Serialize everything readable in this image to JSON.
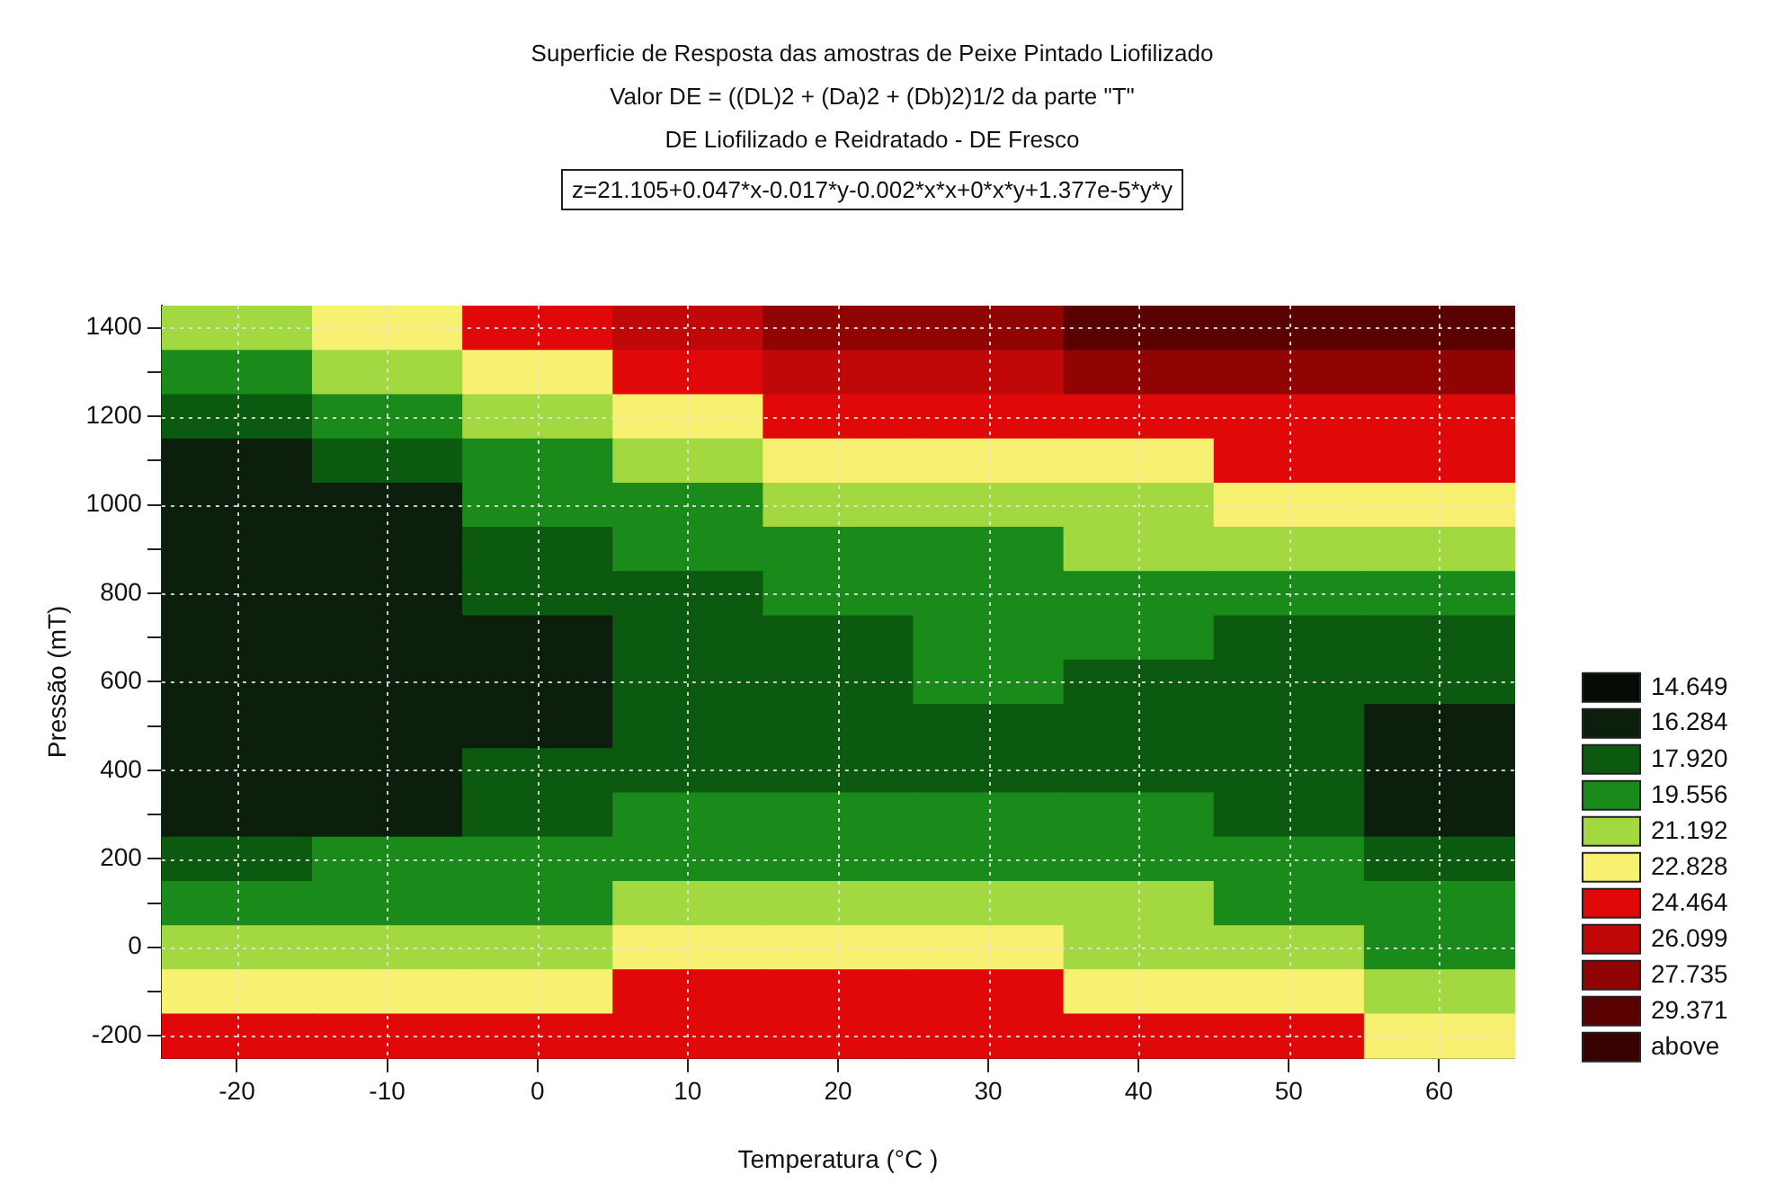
{
  "chart_data": {
    "type": "heatmap",
    "title": "Superficie de Resposta das amostras de Peixe Pintado Liofilizado",
    "subtitle": "Valor DE = ((DL)2 + (Da)2 + (Db)2)1/2  da parte \"T\"\nDE Liofilizado e Reidratado - DE Fresco",
    "annotations": [
      "z=21.105+0.047*x-0.017*y-0.002*x*x+0*x*y+1.377e-5*y*y"
    ],
    "xlabel": "Temperatura (°C )",
    "ylabel": "Pressão (mT)",
    "categories": [
      "-20",
      "-10",
      "0",
      "10",
      "20",
      "30",
      "40",
      "50",
      "60"
    ],
    "y_categories": [
      "1400",
      null,
      "1200",
      null,
      "1000",
      null,
      "800",
      null,
      "600",
      null,
      "400",
      null,
      "200",
      null,
      "0",
      null,
      "-200"
    ],
    "cells": [
      [
        20.37,
        22.01,
        23.65,
        25.28,
        26.92,
        26.92,
        28.55,
        28.55,
        28.55
      ],
      [
        18.74,
        20.37,
        22.01,
        23.65,
        25.28,
        25.28,
        26.92,
        26.92,
        26.92
      ],
      [
        17.1,
        18.74,
        20.37,
        22.01,
        23.65,
        23.65,
        23.65,
        23.65,
        23.65
      ],
      [
        15.47,
        17.1,
        18.74,
        20.37,
        22.01,
        22.01,
        22.01,
        23.65,
        23.65
      ],
      [
        15.47,
        15.47,
        18.74,
        18.74,
        20.37,
        20.37,
        20.37,
        22.01,
        22.01
      ],
      [
        15.47,
        15.47,
        17.1,
        18.74,
        18.74,
        18.74,
        20.37,
        20.37,
        20.37
      ],
      [
        15.47,
        15.47,
        17.1,
        17.1,
        18.74,
        18.74,
        18.74,
        18.74,
        18.74
      ],
      [
        15.47,
        15.47,
        15.47,
        17.1,
        17.1,
        18.74,
        18.74,
        17.1,
        17.1
      ],
      [
        15.47,
        15.47,
        15.47,
        17.1,
        17.1,
        18.74,
        17.1,
        17.1,
        17.1
      ],
      [
        15.47,
        15.47,
        15.47,
        17.1,
        17.1,
        17.1,
        17.1,
        17.1,
        15.47
      ],
      [
        15.47,
        15.47,
        17.1,
        17.1,
        17.1,
        17.1,
        17.1,
        17.1,
        15.47
      ],
      [
        15.47,
        15.47,
        17.1,
        18.74,
        18.74,
        18.74,
        18.74,
        17.1,
        15.47
      ],
      [
        17.1,
        18.74,
        18.74,
        18.74,
        18.74,
        18.74,
        18.74,
        18.74,
        17.1
      ],
      [
        18.74,
        18.74,
        18.74,
        20.37,
        20.37,
        20.37,
        20.37,
        18.74,
        18.74
      ],
      [
        20.37,
        20.37,
        20.37,
        22.01,
        22.01,
        22.01,
        20.37,
        20.37,
        18.74
      ],
      [
        22.01,
        22.01,
        22.01,
        23.65,
        23.65,
        23.65,
        22.01,
        22.01,
        20.37
      ],
      [
        23.65,
        23.65,
        23.65,
        23.65,
        23.65,
        23.65,
        23.65,
        23.65,
        22.01
      ]
    ],
    "cticks": [
      14.649,
      16.284,
      {
        "value": 17.92,
        "label": "17.920"
      },
      19.556,
      21.192,
      22.828,
      24.464,
      26.099,
      27.735,
      29.371,
      {
        "value": 31.007,
        "label": "above"
      }
    ],
    "colors": [
      "#050c05",
      "#0c1f0c",
      "#0b5a10",
      "#1a8a1a",
      "#a2d840",
      "#f8f070",
      "#e00808",
      "#c00808",
      "#900404",
      "#5a0202",
      "#380202"
    ],
    "grid": true
  }
}
